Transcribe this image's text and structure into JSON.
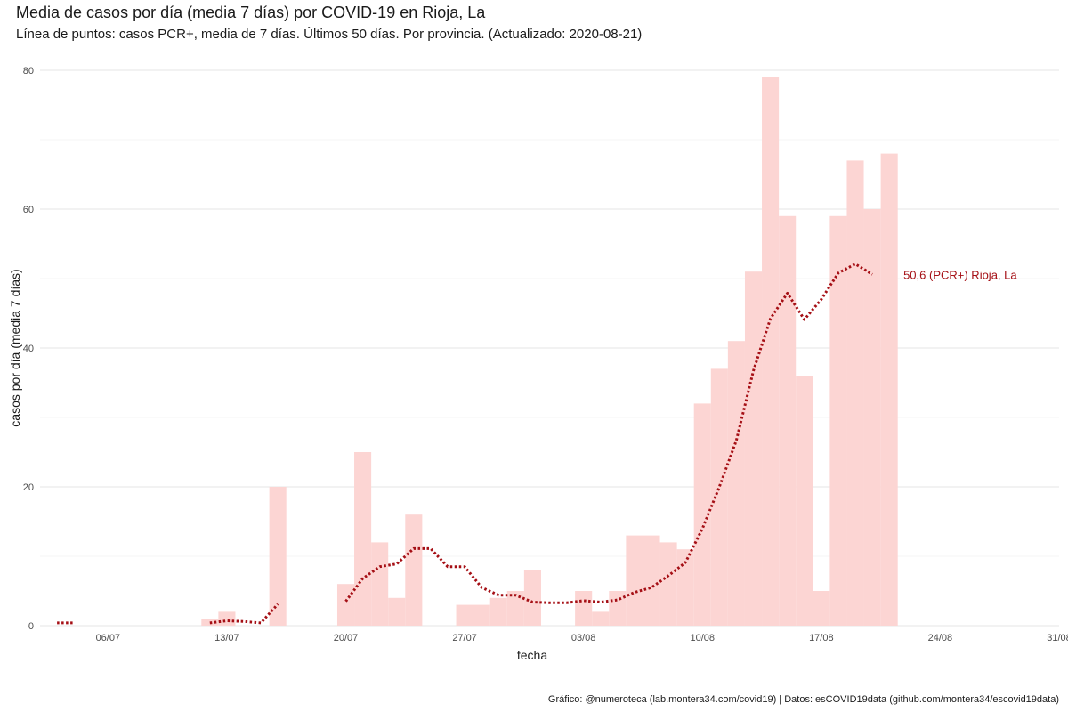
{
  "chart_data": {
    "type": "bar",
    "title": "Media de casos por día (media 7 días) por COVID-19 en Rioja, La",
    "subtitle": "Línea de puntos: casos PCR+, media de 7 días. Últimos 50 días. Por provincia. (Actualizado: 2020-08-21)",
    "caption": "Gráfico: @numeroteca (lab.montera34.com/covid19) | Datos: esCOVID19data (github.com/montera34/escovid19data)",
    "xlabel": "fecha",
    "ylabel": "casos por día (media 7 días)",
    "ylim": [
      0,
      80
    ],
    "yticks": [
      0,
      20,
      40,
      60,
      80
    ],
    "xticks": [
      {
        "date": "2020-07-06",
        "label": "06/07"
      },
      {
        "date": "2020-07-13",
        "label": "13/07"
      },
      {
        "date": "2020-07-20",
        "label": "20/07"
      },
      {
        "date": "2020-07-27",
        "label": "27/07"
      },
      {
        "date": "2020-08-03",
        "label": "03/08"
      },
      {
        "date": "2020-08-10",
        "label": "10/08"
      },
      {
        "date": "2020-08-17",
        "label": "17/08"
      },
      {
        "date": "2020-08-24",
        "label": "24/08"
      },
      {
        "date": "2020-08-31",
        "label": "31/08"
      }
    ],
    "xlim": [
      "2020-07-02",
      "2020-08-31"
    ],
    "bar_color": "#fcd5d3",
    "line_color": "#a50f15",
    "bars": [
      {
        "date": "2020-07-12",
        "value": 1
      },
      {
        "date": "2020-07-13",
        "value": 2
      },
      {
        "date": "2020-07-14",
        "value": 0
      },
      {
        "date": "2020-07-15",
        "value": 0
      },
      {
        "date": "2020-07-16",
        "value": 20
      },
      {
        "date": "2020-07-20",
        "value": 6
      },
      {
        "date": "2020-07-21",
        "value": 25
      },
      {
        "date": "2020-07-22",
        "value": 12
      },
      {
        "date": "2020-07-23",
        "value": 4
      },
      {
        "date": "2020-07-24",
        "value": 16
      },
      {
        "date": "2020-07-27",
        "value": 3
      },
      {
        "date": "2020-07-28",
        "value": 3
      },
      {
        "date": "2020-07-29",
        "value": 4
      },
      {
        "date": "2020-07-30",
        "value": 5
      },
      {
        "date": "2020-07-31",
        "value": 8
      },
      {
        "date": "2020-08-03",
        "value": 5
      },
      {
        "date": "2020-08-04",
        "value": 2
      },
      {
        "date": "2020-08-05",
        "value": 5
      },
      {
        "date": "2020-08-06",
        "value": 13
      },
      {
        "date": "2020-08-07",
        "value": 13
      },
      {
        "date": "2020-08-08",
        "value": 12
      },
      {
        "date": "2020-08-09",
        "value": 11
      },
      {
        "date": "2020-08-10",
        "value": 32
      },
      {
        "date": "2020-08-11",
        "value": 37
      },
      {
        "date": "2020-08-12",
        "value": 41
      },
      {
        "date": "2020-08-13",
        "value": 51
      },
      {
        "date": "2020-08-14",
        "value": 79
      },
      {
        "date": "2020-08-15",
        "value": 59
      },
      {
        "date": "2020-08-16",
        "value": 36
      },
      {
        "date": "2020-08-17",
        "value": 5
      },
      {
        "date": "2020-08-18",
        "value": 59
      },
      {
        "date": "2020-08-19",
        "value": 67
      },
      {
        "date": "2020-08-20",
        "value": 60
      },
      {
        "date": "2020-08-21",
        "value": 68
      }
    ],
    "series": [
      {
        "points": [
          [
            [
              "2020-07-03",
              0.4
            ],
            [
              "2020-07-04",
              0.4
            ]
          ],
          [
            [
              "2020-07-12",
              0.4
            ],
            [
              "2020-07-13",
              0.7
            ],
            [
              "2020-07-14",
              0.6
            ],
            [
              "2020-07-15",
              0.4
            ],
            [
              "2020-07-16",
              3.1
            ]
          ],
          [
            [
              "2020-07-20",
              3.5
            ],
            [
              "2020-07-21",
              6.8
            ],
            [
              "2020-07-22",
              8.5
            ],
            [
              "2020-07-23",
              8.9
            ],
            [
              "2020-07-24",
              11.1
            ],
            [
              "2020-07-25",
              11.1
            ],
            [
              "2020-07-26",
              8.5
            ],
            [
              "2020-07-27",
              8.5
            ],
            [
              "2020-07-28",
              5.5
            ],
            [
              "2020-07-29",
              4.4
            ],
            [
              "2020-07-30",
              4.4
            ],
            [
              "2020-07-31",
              3.4
            ],
            [
              "2020-08-01",
              3.3
            ],
            [
              "2020-08-02",
              3.3
            ],
            [
              "2020-08-03",
              3.6
            ],
            [
              "2020-08-04",
              3.4
            ],
            [
              "2020-08-05",
              3.7
            ],
            [
              "2020-08-06",
              4.8
            ],
            [
              "2020-08-07",
              5.5
            ],
            [
              "2020-08-08",
              7.2
            ],
            [
              "2020-08-09",
              9.1
            ],
            [
              "2020-08-10",
              14.0
            ],
            [
              "2020-08-11",
              20.0
            ],
            [
              "2020-08-12",
              26.7
            ],
            [
              "2020-08-13",
              36.7
            ],
            [
              "2020-08-14",
              44.2
            ],
            [
              "2020-08-15",
              47.9
            ],
            [
              "2020-08-16",
              44.1
            ],
            [
              "2020-08-17",
              47.0
            ],
            [
              "2020-08-18",
              50.8
            ],
            [
              "2020-08-19",
              52.1
            ],
            [
              "2020-08-20",
              50.6
            ]
          ]
        ]
      }
    ],
    "end_label": {
      "date": "2020-08-20",
      "value": 50.6,
      "text": "50,6 (PCR+) Rioja, La"
    },
    "grid": true
  }
}
